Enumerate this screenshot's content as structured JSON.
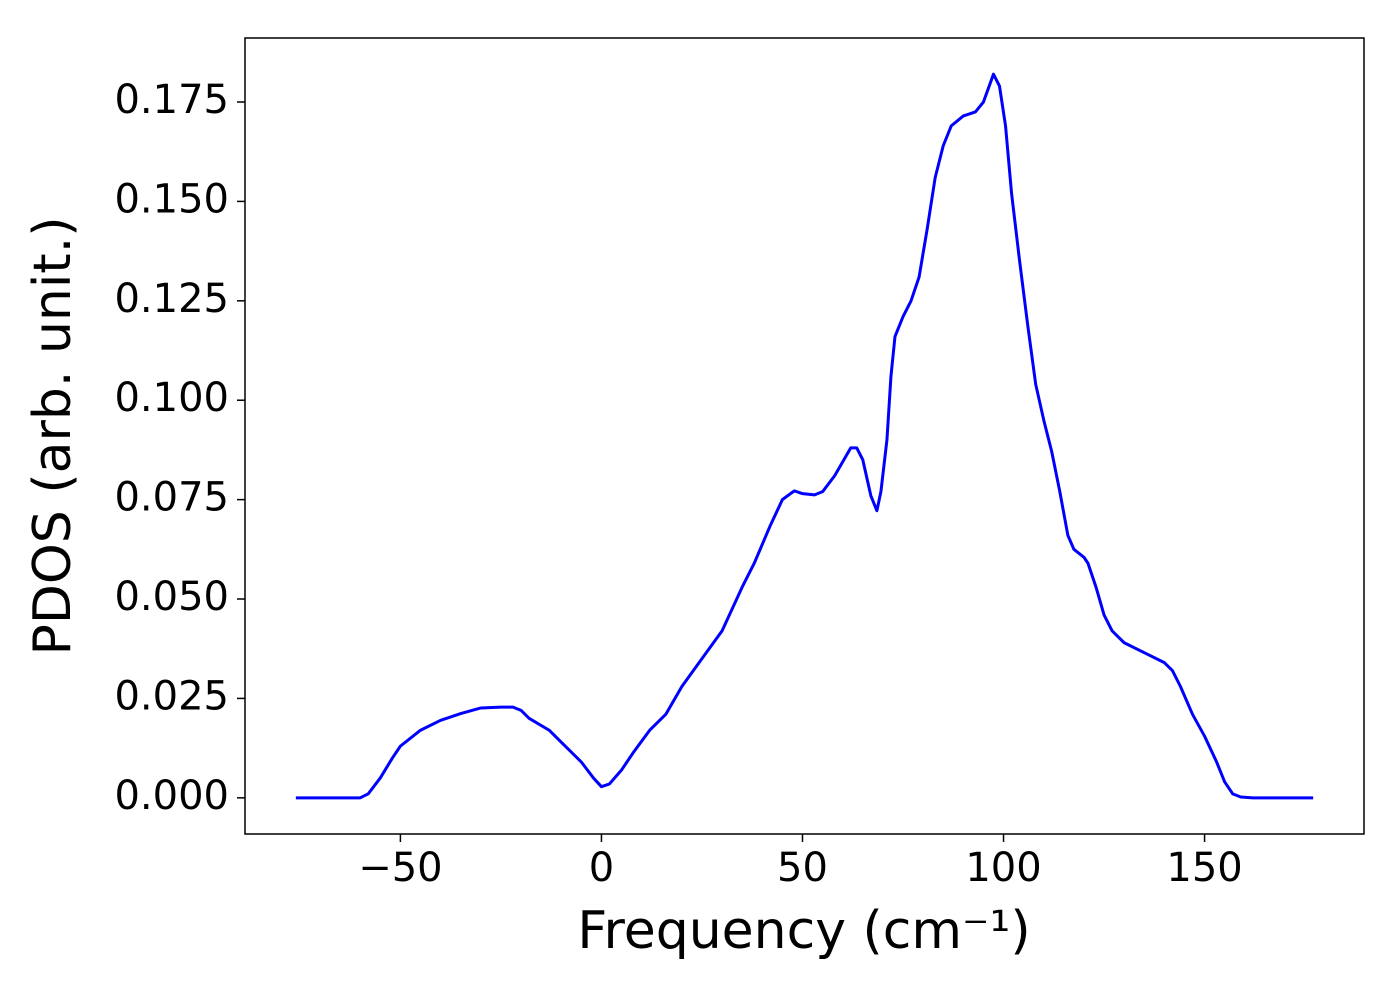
{
  "chart_data": {
    "type": "line",
    "xlabel": "Frequency (cm⁻¹)",
    "ylabel": "PDOS (arb. unit.)",
    "xlim": [
      -88.65,
      189.65
    ],
    "ylim": [
      -0.0091,
      0.1911
    ],
    "xticks": [
      {
        "value": -50,
        "label": "−50"
      },
      0,
      50,
      100,
      150
    ],
    "yticks": [
      {
        "value": 0,
        "label": "0.000"
      },
      {
        "value": 0.025,
        "label": "0.025"
      },
      {
        "value": 0.05,
        "label": "0.050"
      },
      {
        "value": 0.075,
        "label": "0.075"
      },
      {
        "value": 0.1,
        "label": "0.100"
      },
      {
        "value": 0.125,
        "label": "0.125"
      },
      {
        "value": 0.15,
        "label": "0.150"
      },
      {
        "value": 0.175,
        "label": "0.175"
      }
    ],
    "grid": false,
    "series": [
      {
        "color": "#0000ff",
        "x": [
          -76,
          -60,
          -58,
          -55,
          -52,
          -50,
          -45,
          -40,
          -35,
          -30,
          -25,
          -22,
          -20,
          -18,
          -13,
          -10,
          -5,
          -2,
          0,
          2,
          5,
          8,
          12,
          16,
          20,
          25,
          30,
          35,
          38,
          42,
          45,
          47,
          48,
          50,
          53,
          55,
          58,
          62,
          63.5,
          65,
          67,
          68.5,
          69.5,
          71,
          72,
          73,
          75,
          77,
          79,
          81,
          83,
          85,
          87,
          90,
          93,
          95,
          97.5,
          99,
          100.5,
          102,
          104,
          106,
          108,
          110,
          112,
          114,
          116,
          117.5,
          120,
          121,
          123,
          125,
          127,
          130,
          135,
          140,
          142,
          144,
          147,
          150,
          153,
          155,
          157,
          159,
          162,
          177
        ],
        "values": [
          0,
          0,
          0.001,
          0.005,
          0.01,
          0.013,
          0.017,
          0.0195,
          0.0212,
          0.0226,
          0.0228,
          0.0228,
          0.022,
          0.02,
          0.017,
          0.014,
          0.009,
          0.005,
          0.0028,
          0.0035,
          0.007,
          0.0115,
          0.017,
          0.021,
          0.028,
          0.035,
          0.042,
          0.053,
          0.059,
          0.0685,
          0.075,
          0.0765,
          0.0772,
          0.0765,
          0.0762,
          0.077,
          0.081,
          0.088,
          0.088,
          0.085,
          0.076,
          0.0722,
          0.077,
          0.09,
          0.106,
          0.116,
          0.121,
          0.125,
          0.131,
          0.143,
          0.156,
          0.164,
          0.169,
          0.1715,
          0.1725,
          0.175,
          0.182,
          0.179,
          0.169,
          0.152,
          0.135,
          0.119,
          0.104,
          0.095,
          0.087,
          0.077,
          0.066,
          0.0625,
          0.0605,
          0.059,
          0.053,
          0.046,
          0.042,
          0.039,
          0.0365,
          0.034,
          0.032,
          0.028,
          0.021,
          0.0155,
          0.009,
          0.004,
          0.001,
          0.0002,
          0,
          0
        ]
      }
    ]
  }
}
